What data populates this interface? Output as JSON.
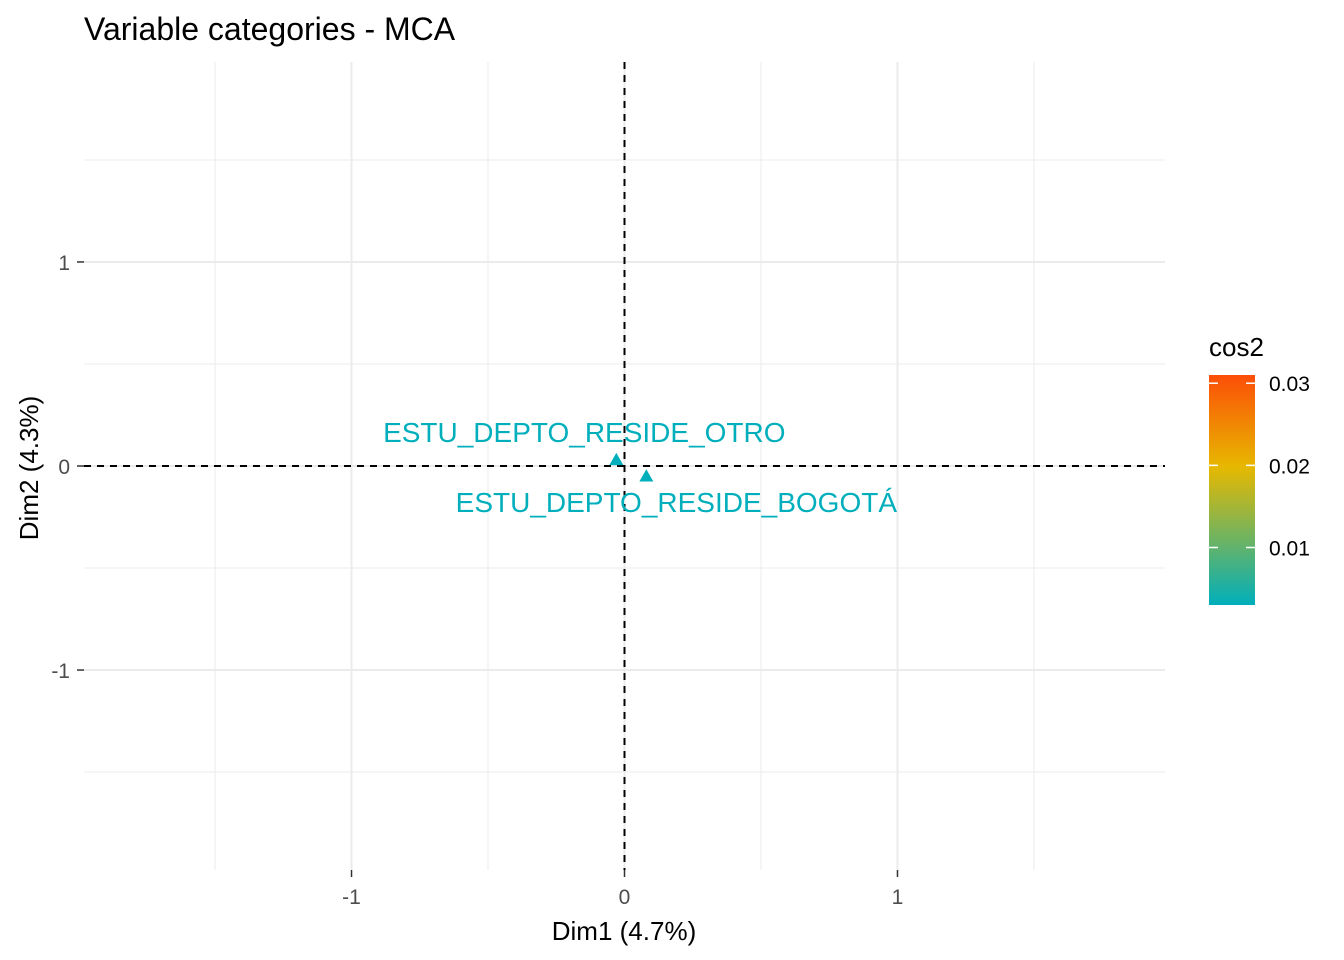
{
  "chart_data": {
    "type": "scatter",
    "title": "Variable categories - MCA",
    "xlabel": "Dim1 (4.7%)",
    "ylabel": "Dim2 (4.3%)",
    "xlim": [
      -1.98,
      1.98
    ],
    "ylim": [
      -1.98,
      1.98
    ],
    "x_ticks": [
      -1,
      0,
      1
    ],
    "y_ticks": [
      -1,
      0,
      1
    ],
    "x_tick_labels": [
      "-1",
      "0",
      "1"
    ],
    "y_tick_labels": [
      "-1",
      "0",
      "1"
    ],
    "grid": true,
    "reference_lines": {
      "x": 0,
      "y": 0,
      "style": "dashed"
    },
    "points": [
      {
        "label": "ESTU_DEPTO_RESIDE_OTRO",
        "x": -0.03,
        "y": 0.03,
        "cos2": 0.003
      },
      {
        "label": "ESTU_DEPTO_RESIDE_BOGOTÁ",
        "x": 0.08,
        "y": -0.05,
        "cos2": 0.003
      }
    ],
    "legend": {
      "title": "cos2",
      "position": "right",
      "range": [
        0.003,
        0.031
      ],
      "ticks": [
        0.01,
        0.02,
        0.03
      ],
      "tick_labels": [
        "0.01",
        "0.02",
        "0.03"
      ],
      "colors": [
        "#00AFBB",
        "#E7B800",
        "#FC4E07"
      ]
    }
  }
}
